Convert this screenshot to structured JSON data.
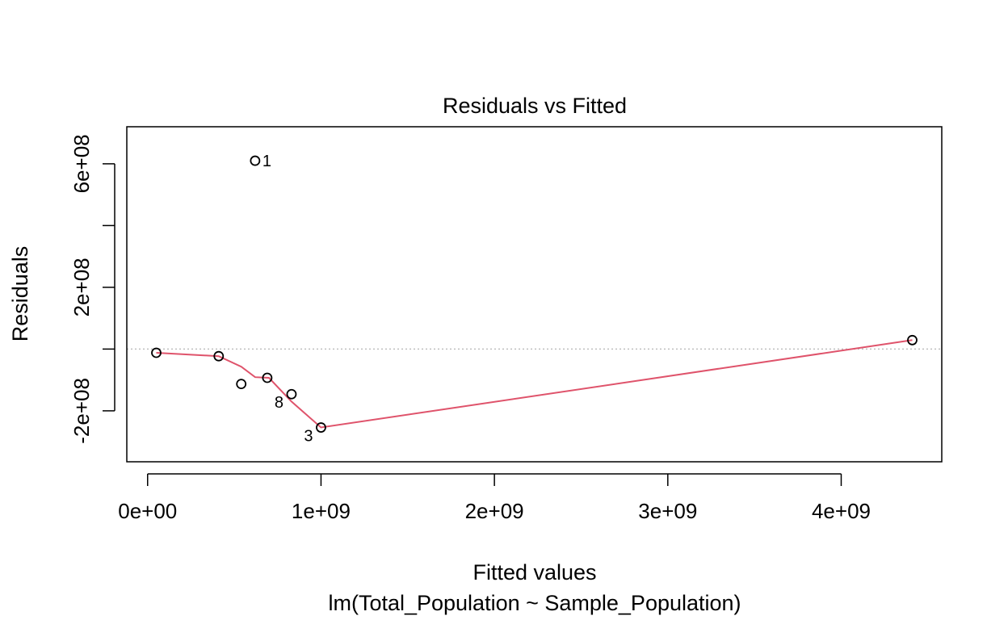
{
  "chart_data": {
    "type": "scatter",
    "title": "Residuals vs Fitted",
    "xlabel": "Fitted values",
    "subtitle": "lm(Total_Population ~ Sample_Population)",
    "ylabel": "Residuals",
    "xlim": [
      -120000000,
      4580000000
    ],
    "ylim": [
      -365000000,
      720000000
    ],
    "x_ticks": [
      0,
      1000000000,
      2000000000,
      3000000000,
      4000000000
    ],
    "x_tick_labels": [
      "0e+00",
      "1e+09",
      "2e+09",
      "3e+09",
      "4e+09"
    ],
    "y_ticks": [
      -200000000,
      0,
      200000000,
      400000000,
      600000000
    ],
    "y_tick_labels": [
      "-2e+08",
      "",
      "2e+08",
      "",
      "6e+08"
    ],
    "points": [
      {
        "x": 50000000,
        "y": -12000000,
        "label": ""
      },
      {
        "x": 410000000,
        "y": -23000000,
        "label": ""
      },
      {
        "x": 540000000,
        "y": -113000000,
        "label": ""
      },
      {
        "x": 620000000,
        "y": 610000000,
        "label": "1"
      },
      {
        "x": 690000000,
        "y": -93000000,
        "label": ""
      },
      {
        "x": 830000000,
        "y": -146000000,
        "label": "8"
      },
      {
        "x": 1000000000,
        "y": -254000000,
        "label": "3"
      },
      {
        "x": 4410000000,
        "y": 29000000,
        "label": ""
      }
    ],
    "smooth_line": [
      {
        "x": 50000000,
        "y": -12000000
      },
      {
        "x": 410000000,
        "y": -23000000
      },
      {
        "x": 540000000,
        "y": -57000000
      },
      {
        "x": 620000000,
        "y": -91000000
      },
      {
        "x": 700000000,
        "y": -93000000
      },
      {
        "x": 830000000,
        "y": -170000000
      },
      {
        "x": 1000000000,
        "y": -254000000
      },
      {
        "x": 4410000000,
        "y": 29000000
      }
    ],
    "reference_line_y": 0,
    "colors": {
      "smooth": "#DF536B",
      "reference": "#BEBEBE",
      "points": "#000000"
    },
    "grid": false
  }
}
